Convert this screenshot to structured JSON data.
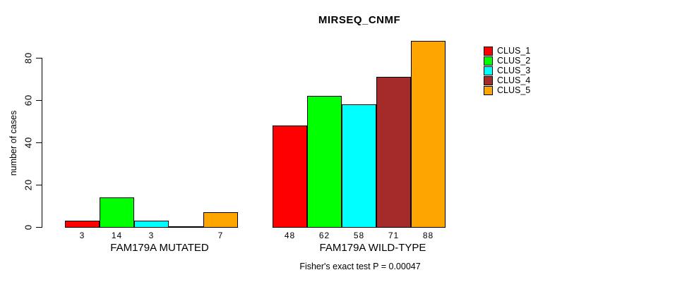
{
  "title": "MIRSEQ_CNMF",
  "y_axis": {
    "label": "number of cases",
    "ticks": [
      "0",
      "20",
      "40",
      "60",
      "80"
    ]
  },
  "legend": {
    "items": [
      {
        "label": "CLUS_1",
        "color": "#FF0000"
      },
      {
        "label": "CLUS_2",
        "color": "#00FF00"
      },
      {
        "label": "CLUS_3",
        "color": "#00FFFF"
      },
      {
        "label": "CLUS_4",
        "color": "#A52A2A"
      },
      {
        "label": "CLUS_5",
        "color": "#FFA500"
      }
    ]
  },
  "footer": "Fisher's exact test P = 0.00047",
  "chart_data": {
    "type": "bar",
    "title": "MIRSEQ_CNMF",
    "ylabel": "number of cases",
    "xlabel": "",
    "ylim": [
      0,
      88
    ],
    "yticks": [
      0,
      20,
      40,
      60,
      80
    ],
    "grid": false,
    "legend_position": "right",
    "series_names": [
      "CLUS_1",
      "CLUS_2",
      "CLUS_3",
      "CLUS_4",
      "CLUS_5"
    ],
    "series_colors": [
      "#FF0000",
      "#00FF00",
      "#00FFFF",
      "#A52A2A",
      "#FFA500"
    ],
    "groups": [
      {
        "category": "FAM179A MUTATED",
        "values": [
          3,
          14,
          3,
          0,
          7
        ],
        "bar_labels": [
          "3",
          "14",
          "3",
          "",
          "7"
        ]
      },
      {
        "category": "FAM179A WILD-TYPE",
        "values": [
          48,
          62,
          58,
          71,
          88
        ],
        "bar_labels": [
          "48",
          "62",
          "58",
          "71",
          "88"
        ]
      }
    ],
    "annotation": "Fisher's exact test P = 0.00047"
  }
}
